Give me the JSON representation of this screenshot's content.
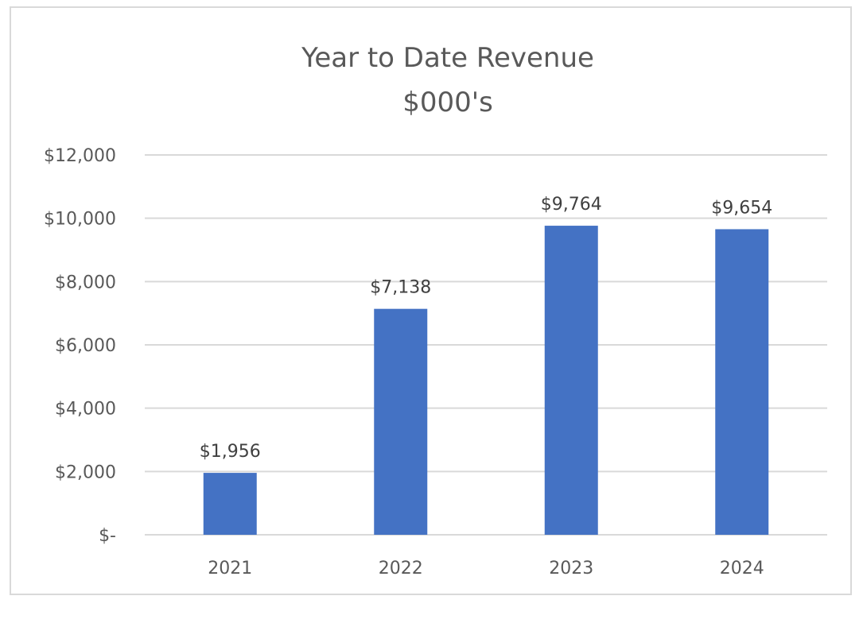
{
  "chart_data": {
    "type": "bar",
    "title": "Year to Date Revenue",
    "subtitle": "$000's",
    "categories": [
      "2021",
      "2022",
      "2023",
      "2024"
    ],
    "values": [
      1956,
      7138,
      9764,
      9654
    ],
    "data_labels": [
      "$1,956",
      "$7,138",
      "$9,764",
      "$9,654"
    ],
    "ylim": [
      0,
      12000
    ],
    "yticks": [
      0,
      2000,
      4000,
      6000,
      8000,
      10000,
      12000
    ],
    "ytick_labels": [
      "$-",
      "$2,000",
      "$4,000",
      "$6,000",
      "$8,000",
      "$10,000",
      "$12,000"
    ],
    "xlabel": "",
    "ylabel": "",
    "grid": true,
    "legend": "none",
    "colors": {
      "bar": "#4472c4",
      "grid": "#d9d9d9",
      "text": "#595959",
      "label": "#404040"
    }
  }
}
